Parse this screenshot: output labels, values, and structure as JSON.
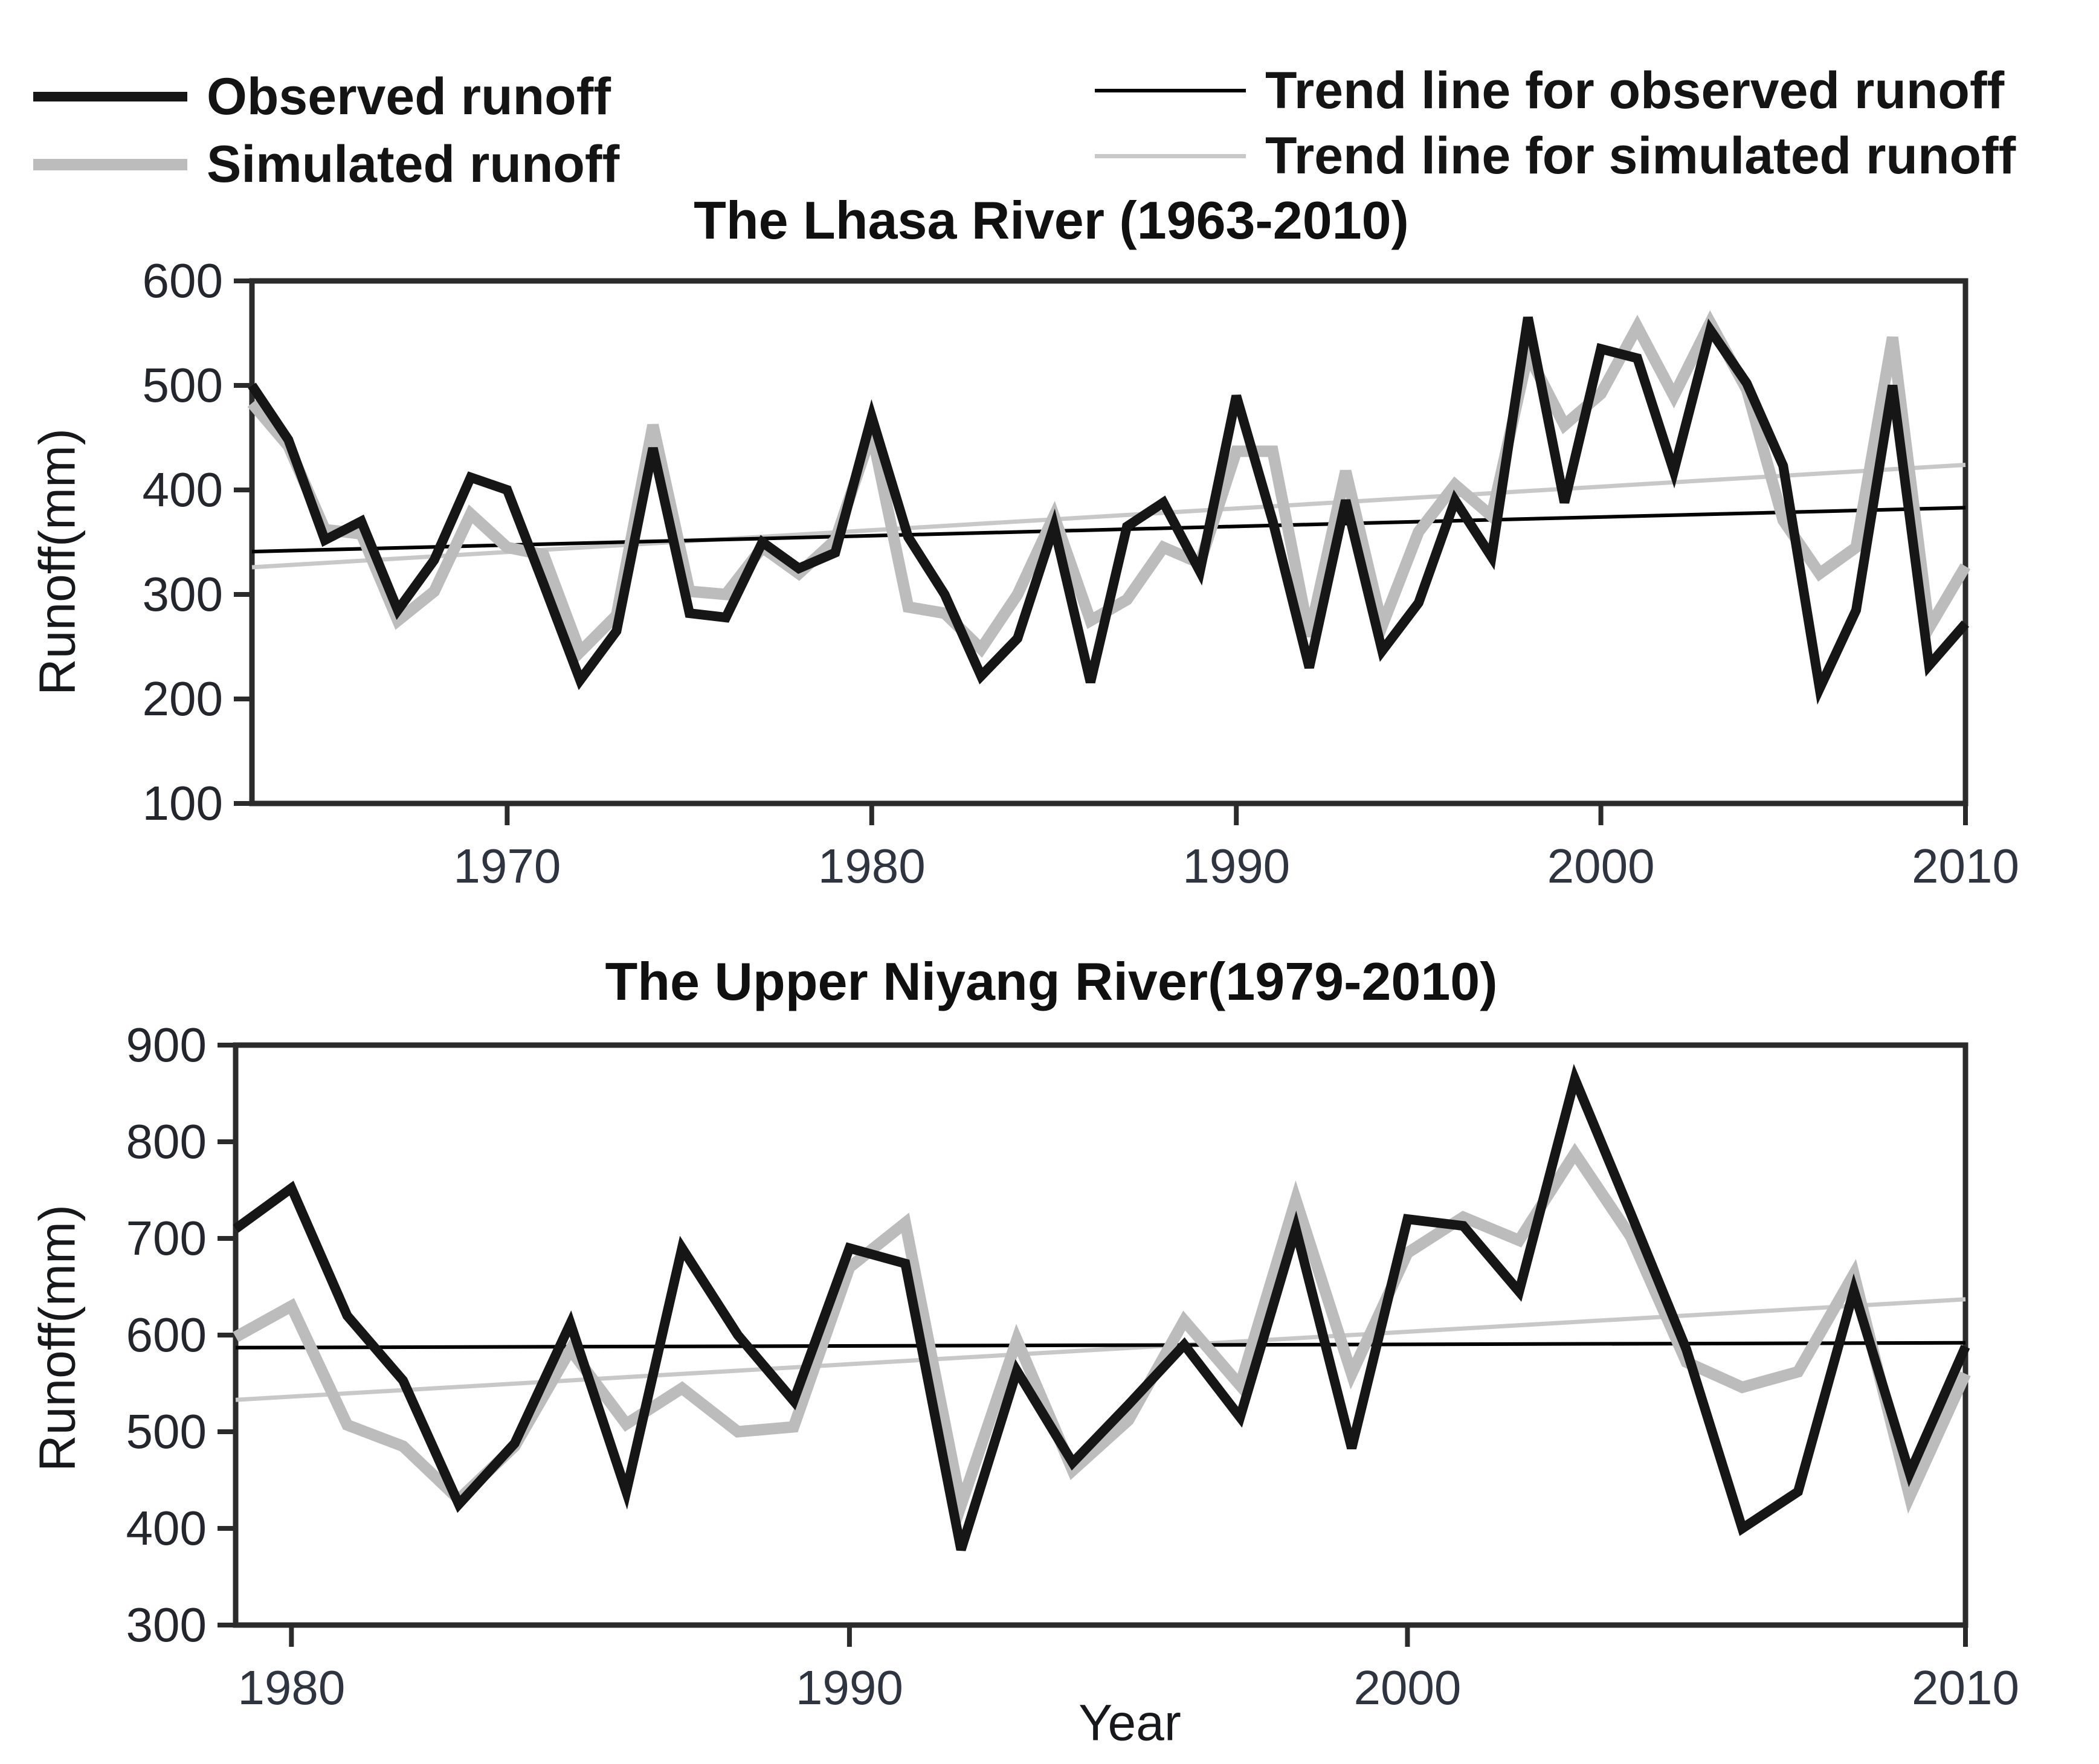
{
  "colors": {
    "observed": "#161616",
    "simulated": "#bcbcbc",
    "trend_observed": "#000000",
    "trend_simulated": "#c8c8c8",
    "axis": "#2b2b2b",
    "tick_text": "#2e3440",
    "title_text": "#101010"
  },
  "legend": {
    "items": [
      {
        "label": "Observed runoff",
        "swatch": "observed",
        "thickness": 16
      },
      {
        "label": "Simulated runoff",
        "swatch": "simulated",
        "thickness": 19
      },
      {
        "label": "Trend line for observed runoff",
        "swatch": "trend_observed",
        "thickness": 6
      },
      {
        "label": "Trend line for simulated runoff",
        "swatch": "trend_simulated",
        "thickness": 7
      }
    ]
  },
  "chart_data": [
    {
      "type": "line",
      "title": "The Lhasa River (1963-2010)",
      "xlabel": "",
      "ylabel": "Runoff(mm)",
      "xlim": [
        1963,
        2010
      ],
      "ylim": [
        100,
        600
      ],
      "xticks": [
        1970,
        1980,
        1990,
        2000,
        2010
      ],
      "yticks": [
        100,
        200,
        300,
        400,
        500,
        600
      ],
      "grid": false,
      "years": [
        1963,
        1964,
        1965,
        1966,
        1967,
        1968,
        1969,
        1970,
        1971,
        1972,
        1973,
        1974,
        1975,
        1976,
        1977,
        1978,
        1979,
        1980,
        1981,
        1982,
        1983,
        1984,
        1985,
        1986,
        1987,
        1988,
        1989,
        1990,
        1991,
        1992,
        1993,
        1994,
        1995,
        1996,
        1997,
        1998,
        1999,
        2000,
        2001,
        2002,
        2003,
        2004,
        2005,
        2006,
        2007,
        2008,
        2009,
        2010
      ],
      "series": [
        {
          "name": "Observed runoff",
          "key": "observed",
          "values": [
            500,
            448,
            352,
            370,
            285,
            333,
            412,
            400,
            310,
            218,
            265,
            440,
            282,
            278,
            350,
            325,
            340,
            470,
            355,
            300,
            222,
            258,
            365,
            216,
            365,
            388,
            322,
            490,
            370,
            230,
            390,
            246,
            292,
            390,
            336,
            565,
            388,
            535,
            526,
            418,
            553,
            502,
            423,
            210,
            285,
            500,
            232,
            272
          ]
        },
        {
          "name": "Simulated runoff",
          "key": "simulated",
          "values": [
            483,
            442,
            362,
            358,
            275,
            303,
            377,
            345,
            338,
            245,
            280,
            462,
            303,
            300,
            345,
            320,
            352,
            455,
            288,
            282,
            248,
            300,
            375,
            275,
            295,
            345,
            330,
            437,
            437,
            260,
            418,
            270,
            360,
            405,
            375,
            530,
            462,
            492,
            556,
            490,
            560,
            496,
            371,
            320,
            345,
            546,
            268,
            327
          ]
        }
      ],
      "trends": [
        {
          "name": "Trend line for observed runoff",
          "key": "trend_observed",
          "start": 341,
          "end": 383
        },
        {
          "name": "Trend line for simulated runoff",
          "key": "trend_simulated",
          "start": 326,
          "end": 424
        }
      ]
    },
    {
      "type": "line",
      "title": "The Upper Niyang River(1979-2010)",
      "xlabel": "Year",
      "ylabel": "Runoff(mm)",
      "xlim": [
        1979,
        2010
      ],
      "ylim": [
        300,
        900
      ],
      "xticks": [
        1980,
        1990,
        2000,
        2010
      ],
      "yticks": [
        300,
        400,
        500,
        600,
        700,
        800,
        900
      ],
      "grid": false,
      "years": [
        1979,
        1980,
        1981,
        1982,
        1983,
        1984,
        1985,
        1986,
        1987,
        1988,
        1989,
        1990,
        1991,
        1992,
        1993,
        1994,
        1995,
        1996,
        1997,
        1998,
        1999,
        2000,
        2001,
        2002,
        2003,
        2004,
        2005,
        2006,
        2007,
        2008,
        2009,
        2010
      ],
      "series": [
        {
          "name": "Observed runoff",
          "key": "observed",
          "values": [
            710,
            752,
            620,
            553,
            425,
            488,
            612,
            438,
            690,
            600,
            532,
            690,
            674,
            378,
            563,
            468,
            528,
            590,
            515,
            710,
            483,
            720,
            713,
            645,
            865,
            726,
            585,
            400,
            438,
            646,
            457,
            588
          ]
        },
        {
          "name": "Simulated runoff",
          "key": "simulated",
          "values": [
            598,
            630,
            507,
            485,
            430,
            485,
            585,
            508,
            545,
            500,
            505,
            670,
            716,
            424,
            595,
            460,
            512,
            615,
            548,
            740,
            560,
            685,
            722,
            698,
            788,
            702,
            572,
            546,
            562,
            663,
            433,
            560
          ]
        }
      ],
      "trends": [
        {
          "name": "Trend line for observed runoff",
          "key": "trend_observed",
          "start": 587,
          "end": 592
        },
        {
          "name": "Trend line for simulated runoff",
          "key": "trend_simulated",
          "start": 533,
          "end": 637
        }
      ]
    }
  ]
}
